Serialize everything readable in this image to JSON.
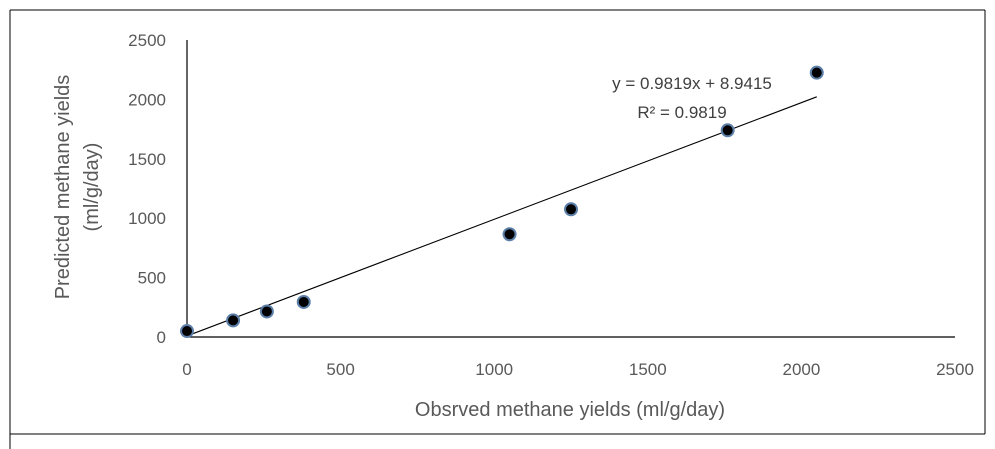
{
  "chart_data": {
    "type": "scatter",
    "title": "",
    "xlabel": "Obsrved methane yields (ml/g/day)",
    "ylabel_line1": "Predicted methane yields",
    "ylabel_line2": "(ml/g/day)",
    "xlim": [
      0,
      2500
    ],
    "ylim": [
      0,
      2500
    ],
    "xticks": [
      0,
      500,
      1000,
      1500,
      2000,
      2500
    ],
    "yticks": [
      0,
      500,
      1000,
      1500,
      2000,
      2500
    ],
    "grid": false,
    "legend": "none",
    "marker_color": "#000000",
    "marker_edge_color": "#5b7fa8",
    "series": [
      {
        "points": [
          {
            "x": 0,
            "y": 50
          },
          {
            "x": 150,
            "y": 140
          },
          {
            "x": 260,
            "y": 215
          },
          {
            "x": 380,
            "y": 295
          },
          {
            "x": 1050,
            "y": 865
          },
          {
            "x": 1250,
            "y": 1075
          },
          {
            "x": 1760,
            "y": 1740
          },
          {
            "x": 2050,
            "y": 2225
          }
        ]
      }
    ],
    "trendline": {
      "slope": 0.9819,
      "intercept": 8.9415,
      "x_range": [
        0,
        2050
      ],
      "equation_text": "y = 0.9819x + 8.9415",
      "r2_text": "R² = 0.9819"
    }
  }
}
